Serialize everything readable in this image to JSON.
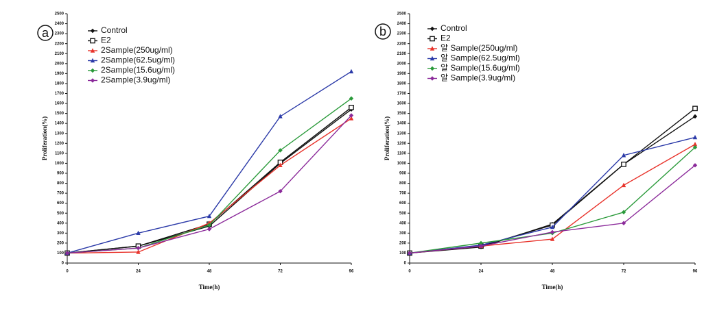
{
  "chart_data": [
    {
      "type": "line",
      "panel": "a",
      "x_label": "Time(h)",
      "y_label": "Proliferation(%)",
      "x": [
        0,
        24,
        48,
        72,
        96
      ],
      "xlim": [
        0,
        96
      ],
      "xticks": [
        0,
        24,
        48,
        72,
        96
      ],
      "ylim": [
        0,
        2500
      ],
      "yticks": [
        0,
        100,
        200,
        300,
        400,
        500,
        600,
        700,
        800,
        900,
        1000,
        1100,
        1200,
        1300,
        1400,
        1500,
        1600,
        1700,
        1800,
        1900,
        2000,
        2100,
        2200,
        2300,
        2400,
        2500
      ],
      "series": [
        {
          "name": "Control",
          "color": "#111111",
          "marker": "diamond",
          "values": [
            100,
            170,
            370,
            1000,
            1540
          ]
        },
        {
          "name": "E2",
          "color": "#111111",
          "marker": "square",
          "values": [
            100,
            170,
            390,
            1010,
            1560
          ]
        },
        {
          "name": "2Sample(250ug/ml)",
          "color": "#e8322a",
          "marker": "triangle",
          "values": [
            100,
            110,
            400,
            980,
            1450
          ]
        },
        {
          "name": "2Sample(62.5ug/ml)",
          "color": "#2b3aa8",
          "marker": "triangle",
          "values": [
            100,
            300,
            470,
            1470,
            1920
          ]
        },
        {
          "name": "2Sample(15.6ug/ml)",
          "color": "#2a9a3a",
          "marker": "diamond",
          "values": [
            100,
            150,
            380,
            1130,
            1650
          ]
        },
        {
          "name": "2Sample(3.9ug/ml)",
          "color": "#8b2a9a",
          "marker": "diamond",
          "values": [
            100,
            150,
            340,
            720,
            1480
          ]
        }
      ]
    },
    {
      "type": "line",
      "panel": "b",
      "x_label": "Time(h)",
      "y_label": "Proliferation(%)",
      "x": [
        0,
        24,
        48,
        72,
        96
      ],
      "xlim": [
        0,
        96
      ],
      "xticks": [
        0,
        24,
        48,
        72,
        96
      ],
      "ylim": [
        0,
        2500
      ],
      "yticks": [
        0,
        100,
        200,
        300,
        400,
        500,
        600,
        700,
        800,
        900,
        1000,
        1100,
        1200,
        1300,
        1400,
        1500,
        1600,
        1700,
        1800,
        1900,
        2000,
        2100,
        2200,
        2300,
        2400,
        2500
      ],
      "series": [
        {
          "name": "Control",
          "color": "#111111",
          "marker": "diamond",
          "values": [
            100,
            160,
            390,
            990,
            1470
          ]
        },
        {
          "name": "E2",
          "color": "#111111",
          "marker": "square",
          "values": [
            100,
            170,
            380,
            990,
            1550
          ]
        },
        {
          "name": "알 Sample(250ug/ml)",
          "color": "#e8322a",
          "marker": "triangle",
          "values": [
            100,
            170,
            240,
            780,
            1190
          ]
        },
        {
          "name": "알 Sample(62.5ug/ml)",
          "color": "#2b3aa8",
          "marker": "triangle",
          "values": [
            100,
            180,
            360,
            1080,
            1260
          ]
        },
        {
          "name": "알 Sample(15.6ug/ml)",
          "color": "#2a9a3a",
          "marker": "diamond",
          "values": [
            100,
            200,
            300,
            510,
            1160
          ]
        },
        {
          "name": "알 Sample(3.9ug/ml)",
          "color": "#8b2a9a",
          "marker": "diamond",
          "values": [
            100,
            170,
            310,
            400,
            980
          ]
        }
      ]
    }
  ]
}
